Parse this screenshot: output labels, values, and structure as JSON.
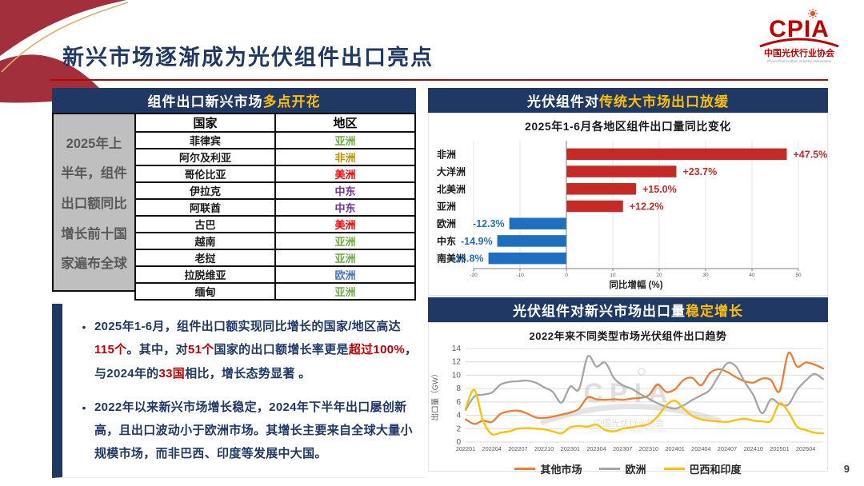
{
  "slide": {
    "title": "新兴市场逐渐成为光伏组件出口亮点",
    "page_number": "9"
  },
  "logo": {
    "acronym": "CPIA",
    "name_cn": "中国光伏行业协会",
    "name_en": "China Photovoltaic Industry Association"
  },
  "colors": {
    "navy": "#1F3864",
    "yellow": "#FFC000",
    "red": "#C00000",
    "bar_red": "#C42B26",
    "bar_blue": "#1F6FC0",
    "asia": "#70AD47",
    "africa": "#BF8F00",
    "america": "#FF0000",
    "mideast": "#7030A0",
    "europe": "#4472C4"
  },
  "left_panel": {
    "header": [
      {
        "t": "组件出口新兴市场",
        "c": "#FFFFFF"
      },
      {
        "t": "多点开花",
        "c": "#FFC000"
      }
    ],
    "side_label_lines": [
      "2025年上",
      "半年，组件",
      "出口额同比",
      "增长前十国",
      "家遍布全球"
    ],
    "table": {
      "columns": [
        "国家",
        "地区"
      ],
      "rows": [
        {
          "country": "菲律宾",
          "region": "亚洲",
          "region_color": "#70AD47"
        },
        {
          "country": "阿尔及利亚",
          "region": "非洲",
          "region_color": "#BF8F00"
        },
        {
          "country": "哥伦比亚",
          "region": "美洲",
          "region_color": "#FF0000"
        },
        {
          "country": "伊拉克",
          "region": "中东",
          "region_color": "#7030A0"
        },
        {
          "country": "阿联酋",
          "region": "中东",
          "region_color": "#7030A0"
        },
        {
          "country": "古巴",
          "region": "美洲",
          "region_color": "#FF0000"
        },
        {
          "country": "越南",
          "region": "亚洲",
          "region_color": "#70AD47"
        },
        {
          "country": "老挝",
          "region": "亚洲",
          "region_color": "#70AD47"
        },
        {
          "country": "拉脱维亚",
          "region": "欧洲",
          "region_color": "#4472C4"
        },
        {
          "country": "缅甸",
          "region": "亚洲",
          "region_color": "#70AD47"
        }
      ]
    }
  },
  "notes": {
    "bullets": [
      [
        {
          "t": "2025年1-6月，组件出口额实现同比增长的国家/地区高达",
          "c": "#1F3864"
        },
        {
          "t": "115个",
          "c": "#C00000"
        },
        {
          "t": "。其中，对",
          "c": "#1F3864"
        },
        {
          "t": "51个",
          "c": "#C00000"
        },
        {
          "t": "国家的出口额增长率更是",
          "c": "#1F3864"
        },
        {
          "t": "超过100%",
          "c": "#C00000"
        },
        {
          "t": "，与2024年的",
          "c": "#1F3864"
        },
        {
          "t": "33国",
          "c": "#C00000"
        },
        {
          "t": "相比，增长态势显著 。",
          "c": "#1F3864"
        }
      ],
      [
        {
          "t": "2022年以来新兴市场增长稳定，2024年下半年出口屡创新高，且出口波动小于欧洲市场。其增长主要来自全球大量小规模市场，而非巴西、印度等发展中大国。",
          "c": "#1F3864"
        }
      ]
    ]
  },
  "bar_panel": {
    "header": [
      {
        "t": "光伏组件对",
        "c": "#FFFFFF"
      },
      {
        "t": "传统大市场出口放缓",
        "c": "#FFC000"
      }
    ]
  },
  "line_panel": {
    "header": [
      {
        "t": "光伏组件对新兴市场出口量",
        "c": "#FFFFFF"
      },
      {
        "t": "稳定增长",
        "c": "#FFC000"
      }
    ],
    "watermark": {
      "acronym": "CPIA",
      "name_cn": "中国光伏行业协会",
      "name_en": "China Photovoltaic Industry Association"
    }
  },
  "chart_data": [
    {
      "type": "bar",
      "orientation": "horizontal",
      "title": "2025年1-6月各地区组件出口量同比变化",
      "categories": [
        "非洲",
        "大洋洲",
        "北美洲",
        "亚洲",
        "欧洲",
        "中东",
        "南美洲"
      ],
      "values": [
        47.5,
        23.7,
        15.0,
        12.2,
        -12.3,
        -14.9,
        -16.8
      ],
      "labels": [
        "+47.5%",
        "+23.7%",
        "+15.0%",
        "+12.2%",
        "-12.3%",
        "-14.9%",
        "-16.8%"
      ],
      "positive_color": "#C42B26",
      "negative_color": "#1F6FC0",
      "xlabel": "同比增幅 (%)",
      "xlim": [
        -20,
        50
      ],
      "xticks": [
        -20,
        -10,
        0,
        10,
        20,
        30,
        40,
        50
      ],
      "grid": true
    },
    {
      "type": "line",
      "title": "2022年来不同类型市场光伏组件出口趋势",
      "ylabel": "出口量（GW）",
      "ylim": [
        0,
        14
      ],
      "yticks": [
        0,
        2,
        4,
        6,
        8,
        10,
        12,
        14
      ],
      "grid": true,
      "legend_position": "bottom",
      "x": [
        "202201",
        "202202",
        "202203",
        "202204",
        "202205",
        "202206",
        "202207",
        "202208",
        "202209",
        "202210",
        "202211",
        "202212",
        "202301",
        "202302",
        "202303",
        "202304",
        "202305",
        "202306",
        "202307",
        "202308",
        "202309",
        "202310",
        "202311",
        "202312",
        "202401",
        "202402",
        "202403",
        "202404",
        "202405",
        "202406",
        "202407",
        "202408",
        "202409",
        "202410",
        "202411",
        "202412",
        "202501",
        "202502",
        "202503",
        "202504",
        "202505",
        "202506"
      ],
      "x_tick_every": 3,
      "series": [
        {
          "name": "其他市场",
          "color": "#ED7D31",
          "values": [
            3.4,
            2.7,
            3.2,
            3.0,
            4.2,
            4.6,
            4.7,
            4.3,
            3.7,
            3.6,
            3.8,
            4.1,
            4.4,
            5.0,
            6.7,
            6.4,
            6.3,
            6.4,
            6.3,
            6.5,
            6.6,
            7.0,
            8.6,
            7.5,
            7.9,
            9.3,
            9.6,
            8.5,
            10.3,
            10.9,
            10.5,
            9.7,
            9.1,
            8.9,
            9.5,
            9.3,
            7.6,
            13.3,
            11.3,
            11.9,
            11.6,
            11.0
          ]
        },
        {
          "name": "欧洲",
          "color": "#A5A5A5",
          "values": [
            4.8,
            6.8,
            7.1,
            7.4,
            8.6,
            9.0,
            9.1,
            9.2,
            8.9,
            8.2,
            7.5,
            5.9,
            8.3,
            7.9,
            12.8,
            11.3,
            11.9,
            9.6,
            8.5,
            8.0,
            7.2,
            6.5,
            5.8,
            5.3,
            5.0,
            5.5,
            6.3,
            7.0,
            7.8,
            9.9,
            11.8,
            11.3,
            9.0,
            7.0,
            4.3,
            6.4,
            5.7,
            5.6,
            7.8,
            9.2,
            10.2,
            9.4
          ]
        },
        {
          "name": "巴西和印度",
          "color": "#FFC000",
          "values": [
            5.0,
            7.8,
            3.2,
            1.2,
            1.4,
            1.6,
            2.0,
            2.1,
            2.0,
            1.9,
            1.6,
            1.3,
            2.2,
            2.4,
            2.3,
            2.6,
            1.8,
            1.6,
            2.0,
            2.2,
            2.4,
            2.7,
            3.8,
            5.5,
            6.2,
            5.0,
            3.9,
            3.4,
            3.2,
            3.1,
            3.0,
            3.3,
            3.5,
            3.2,
            3.1,
            3.2,
            5.8,
            4.5,
            2.3,
            1.8,
            1.4,
            1.3
          ]
        }
      ]
    }
  ]
}
